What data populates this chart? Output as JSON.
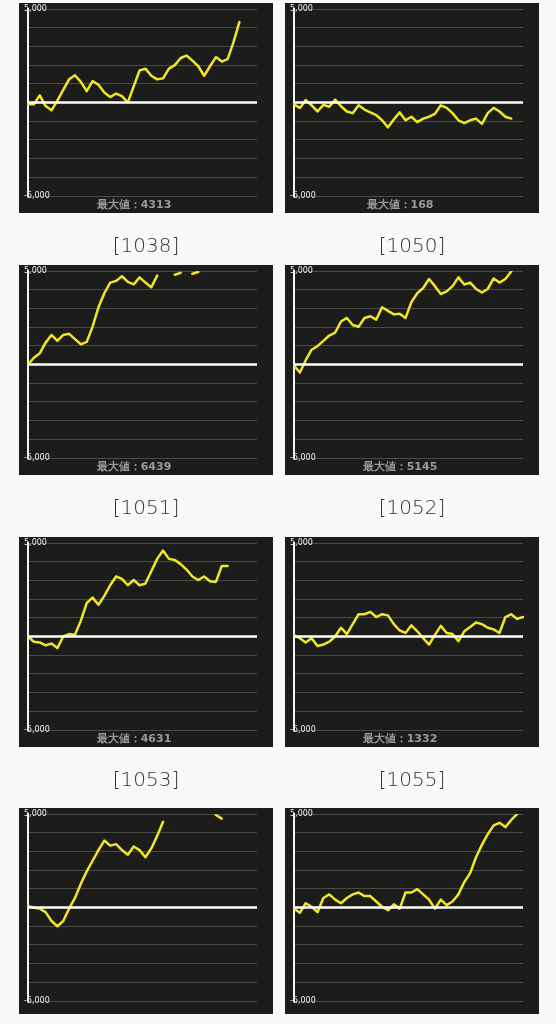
{
  "chart_data": [
    {
      "type": "line",
      "title": "[1038]",
      "annotations": [
        "最大値：4313"
      ],
      "categories": [
        null,
        null,
        null,
        null,
        null,
        null,
        null,
        null,
        null,
        null,
        null,
        null,
        null,
        null,
        null,
        null,
        null,
        null,
        null,
        null,
        null,
        null,
        null,
        null,
        null,
        null,
        null,
        null,
        null,
        null,
        null,
        null,
        null,
        null,
        null,
        null,
        null,
        null,
        null,
        null
      ],
      "series": [
        {
          "color": "#f0e629",
          "values": [
            -100,
            -100,
            380,
            -190,
            -420,
            100,
            670,
            1240,
            1460,
            1100,
            610,
            1140,
            950,
            530,
            290,
            480,
            340,
            0,
            860,
            1710,
            1810,
            1430,
            1240,
            1290,
            1810,
            2000,
            2380,
            2510,
            2240,
            1940,
            1430,
            1940,
            2430,
            2190,
            2320,
            3230,
            4300,
            null,
            null,
            null
          ]
        }
      ],
      "ylim": [
        -5000,
        5000
      ],
      "yticks": [
        {
          "value": -5000,
          "label": "-5,000"
        },
        {
          "value": -4000,
          "label": null
        },
        {
          "value": -3000,
          "label": null
        },
        {
          "value": -2000,
          "label": null
        },
        {
          "value": -1000,
          "label": null
        },
        {
          "value": 0,
          "label": null
        },
        {
          "value": 1000,
          "label": null
        },
        {
          "value": 2000,
          "label": null
        },
        {
          "value": 3000,
          "label": null
        },
        {
          "value": 4000,
          "label": null
        },
        {
          "value": 5000,
          "label": "5,000"
        }
      ],
      "grid": "y",
      "tick_labels": "y",
      "marker": "none",
      "ref_lines": [
        {
          "axis": "y",
          "value": 0,
          "color": "#ffffff"
        }
      ]
    },
    {
      "type": "line",
      "title": "[1050]",
      "annotations": [
        "最大値：168"
      ],
      "categories": [
        null,
        null,
        null,
        null,
        null,
        null,
        null,
        null,
        null,
        null,
        null,
        null,
        null,
        null,
        null,
        null,
        null,
        null,
        null,
        null,
        null,
        null,
        null,
        null,
        null,
        null,
        null,
        null,
        null,
        null,
        null,
        null,
        null,
        null,
        null,
        null,
        null,
        null,
        null,
        null
      ],
      "series": [
        {
          "color": "#f0e629",
          "values": [
            -100,
            -290,
            130,
            -150,
            -480,
            -130,
            -230,
            150,
            -190,
            -480,
            -570,
            -150,
            -380,
            -530,
            -670,
            -950,
            -1330,
            -910,
            -530,
            -950,
            -760,
            -1050,
            -860,
            -760,
            -610,
            -150,
            -290,
            -570,
            -950,
            -1100,
            -950,
            -860,
            -1140,
            -570,
            -290,
            -480,
            -760,
            -860,
            null,
            null
          ]
        }
      ],
      "ylim": [
        -5000,
        5000
      ],
      "yticks": [
        {
          "value": -5000,
          "label": "-5,000"
        },
        {
          "value": -4000,
          "label": null
        },
        {
          "value": -3000,
          "label": null
        },
        {
          "value": -2000,
          "label": null
        },
        {
          "value": -1000,
          "label": null
        },
        {
          "value": 0,
          "label": null
        },
        {
          "value": 1000,
          "label": null
        },
        {
          "value": 2000,
          "label": null
        },
        {
          "value": 3000,
          "label": null
        },
        {
          "value": 4000,
          "label": null
        },
        {
          "value": 5000,
          "label": "5,000"
        }
      ],
      "grid": "y",
      "tick_labels": "y",
      "marker": "none",
      "ref_lines": [
        {
          "axis": "y",
          "value": 0,
          "color": "#ffffff"
        }
      ]
    },
    {
      "type": "line",
      "title": "[1051]",
      "annotations": [
        "最大値：6439"
      ],
      "categories": [
        null,
        null,
        null,
        null,
        null,
        null,
        null,
        null,
        null,
        null,
        null,
        null,
        null,
        null,
        null,
        null,
        null,
        null,
        null,
        null,
        null,
        null,
        null,
        null,
        null,
        null,
        null,
        null,
        null,
        null,
        null,
        null,
        null,
        null,
        null,
        null,
        null,
        null,
        null,
        null
      ],
      "series": [
        {
          "color": "#f0e629",
          "values": [
            0,
            360,
            600,
            1170,
            1580,
            1260,
            1580,
            1640,
            1360,
            1080,
            1210,
            2020,
            3060,
            3810,
            4380,
            4470,
            4720,
            4420,
            4280,
            4660,
            4380,
            4130,
            4750,
            null,
            null,
            4800,
            4900,
            null,
            4850,
            4950,
            null,
            null,
            null,
            null,
            null,
            null,
            null,
            null,
            null,
            null
          ]
        }
      ],
      "ylim": [
        -5000,
        5000
      ],
      "yticks": [
        {
          "value": -5000,
          "label": "-5,000"
        },
        {
          "value": -4000,
          "label": null
        },
        {
          "value": -3000,
          "label": null
        },
        {
          "value": -2000,
          "label": null
        },
        {
          "value": -1000,
          "label": null
        },
        {
          "value": 0,
          "label": null
        },
        {
          "value": 1000,
          "label": null
        },
        {
          "value": 2000,
          "label": null
        },
        {
          "value": 3000,
          "label": null
        },
        {
          "value": 4000,
          "label": null
        },
        {
          "value": 5000,
          "label": "5,000"
        }
      ],
      "grid": "y",
      "tick_labels": "y",
      "marker": "none",
      "ref_lines": [
        {
          "axis": "y",
          "value": 0,
          "color": "#ffffff"
        }
      ]
    },
    {
      "type": "line",
      "title": "[1052]",
      "annotations": [
        "最大値：5145"
      ],
      "categories": [
        null,
        null,
        null,
        null,
        null,
        null,
        null,
        null,
        null,
        null,
        null,
        null,
        null,
        null,
        null,
        null,
        null,
        null,
        null,
        null,
        null,
        null,
        null,
        null,
        null,
        null,
        null,
        null,
        null,
        null,
        null,
        null,
        null,
        null,
        null,
        null,
        null,
        null,
        null,
        null
      ],
      "series": [
        {
          "color": "#f0e629",
          "values": [
            -60,
            -430,
            230,
            790,
            980,
            1260,
            1550,
            1700,
            2300,
            2490,
            2110,
            2020,
            2490,
            2580,
            2400,
            3060,
            2870,
            2680,
            2720,
            2490,
            3340,
            3810,
            4090,
            4570,
            4190,
            3770,
            3910,
            4190,
            4660,
            4280,
            4380,
            4040,
            3850,
            4040,
            4600,
            4380,
            4570,
            4980,
            null,
            null
          ]
        }
      ],
      "ylim": [
        -5000,
        5000
      ],
      "yticks": [
        {
          "value": -5000,
          "label": "-5,000"
        },
        {
          "value": -4000,
          "label": null
        },
        {
          "value": -3000,
          "label": null
        },
        {
          "value": -2000,
          "label": null
        },
        {
          "value": -1000,
          "label": null
        },
        {
          "value": 0,
          "label": null
        },
        {
          "value": 1000,
          "label": null
        },
        {
          "value": 2000,
          "label": null
        },
        {
          "value": 3000,
          "label": null
        },
        {
          "value": 4000,
          "label": null
        },
        {
          "value": 5000,
          "label": "5,000"
        }
      ],
      "grid": "y",
      "tick_labels": "y",
      "marker": "none",
      "ref_lines": [
        {
          "axis": "y",
          "value": 0,
          "color": "#ffffff"
        }
      ]
    },
    {
      "type": "line",
      "title": "[1053]",
      "annotations": [
        "最大値：4631"
      ],
      "categories": [
        null,
        null,
        null,
        null,
        null,
        null,
        null,
        null,
        null,
        null,
        null,
        null,
        null,
        null,
        null,
        null,
        null,
        null,
        null,
        null,
        null,
        null,
        null,
        null,
        null,
        null,
        null,
        null,
        null,
        null,
        null,
        null,
        null,
        null,
        null,
        null,
        null,
        null,
        null,
        null
      ],
      "series": [
        {
          "color": "#f0e629",
          "values": [
            0,
            -280,
            -320,
            -470,
            -380,
            -620,
            0,
            130,
            90,
            850,
            1790,
            2080,
            1700,
            2170,
            2740,
            3210,
            3080,
            2740,
            3020,
            2740,
            2830,
            3490,
            4150,
            4600,
            4150,
            4090,
            3870,
            3580,
            3210,
            3020,
            3210,
            2960,
            2920,
            3770,
            3770,
            null,
            null,
            null,
            null,
            null
          ]
        }
      ],
      "ylim": [
        -5000,
        5000
      ],
      "yticks": [
        {
          "value": -5000,
          "label": "-5,000"
        },
        {
          "value": -4000,
          "label": null
        },
        {
          "value": -3000,
          "label": null
        },
        {
          "value": -2000,
          "label": null
        },
        {
          "value": -1000,
          "label": null
        },
        {
          "value": 0,
          "label": null
        },
        {
          "value": 1000,
          "label": null
        },
        {
          "value": 2000,
          "label": null
        },
        {
          "value": 3000,
          "label": null
        },
        {
          "value": 4000,
          "label": null
        },
        {
          "value": 5000,
          "label": "5,000"
        }
      ],
      "grid": "y",
      "tick_labels": "y",
      "marker": "none",
      "ref_lines": [
        {
          "axis": "y",
          "value": 0,
          "color": "#ffffff"
        }
      ]
    },
    {
      "type": "line",
      "title": "[1055]",
      "annotations": [
        "最大値：1332"
      ],
      "categories": [
        null,
        null,
        null,
        null,
        null,
        null,
        null,
        null,
        null,
        null,
        null,
        null,
        null,
        null,
        null,
        null,
        null,
        null,
        null,
        null,
        null,
        null,
        null,
        null,
        null,
        null,
        null,
        null,
        null,
        null,
        null,
        null,
        null,
        null,
        null,
        null,
        null,
        null,
        null,
        null
      ],
      "series": [
        {
          "color": "#f0e629",
          "values": [
            60,
            -90,
            -320,
            -90,
            -510,
            -430,
            -280,
            0,
            470,
            130,
            660,
            1190,
            1190,
            1320,
            1040,
            1190,
            1130,
            660,
            320,
            190,
            600,
            280,
            -90,
            -430,
            90,
            570,
            190,
            130,
            -250,
            280,
            510,
            750,
            660,
            470,
            380,
            190,
            1040,
            1190,
            940,
            1040
          ]
        }
      ],
      "ylim": [
        -5000,
        5000
      ],
      "yticks": [
        {
          "value": -5000,
          "label": "-5,000"
        },
        {
          "value": -4000,
          "label": null
        },
        {
          "value": -3000,
          "label": null
        },
        {
          "value": -2000,
          "label": null
        },
        {
          "value": -1000,
          "label": null
        },
        {
          "value": 0,
          "label": null
        },
        {
          "value": 1000,
          "label": null
        },
        {
          "value": 2000,
          "label": null
        },
        {
          "value": 3000,
          "label": null
        },
        {
          "value": 4000,
          "label": null
        },
        {
          "value": 5000,
          "label": "5,000"
        }
      ],
      "grid": "y",
      "tick_labels": "y",
      "marker": "none",
      "ref_lines": [
        {
          "axis": "y",
          "value": 0,
          "color": "#ffffff"
        }
      ]
    },
    {
      "type": "line",
      "categories": [
        null,
        null,
        null,
        null,
        null,
        null,
        null,
        null,
        null,
        null,
        null,
        null,
        null,
        null,
        null,
        null,
        null,
        null,
        null,
        null,
        null,
        null,
        null,
        null,
        null,
        null,
        null,
        null,
        null,
        null,
        null,
        null,
        null,
        null,
        null,
        null,
        null,
        null,
        null,
        null
      ],
      "series": [
        {
          "color": "#f0e629",
          "values": [
            90,
            -20,
            -60,
            -250,
            -720,
            -1000,
            -720,
            -60,
            510,
            1270,
            1930,
            2500,
            3070,
            3580,
            3310,
            3390,
            3070,
            2820,
            3260,
            3070,
            2690,
            3160,
            3830,
            4580,
            null,
            null,
            null,
            null,
            null,
            null,
            null,
            null,
            4950,
            4750,
            null,
            null,
            null,
            null,
            null,
            null
          ]
        }
      ],
      "ylim": [
        -5000,
        5000
      ],
      "yticks": [
        {
          "value": -5000,
          "label": "-5,000"
        },
        {
          "value": -4000,
          "label": null
        },
        {
          "value": -3000,
          "label": null
        },
        {
          "value": -2000,
          "label": null
        },
        {
          "value": -1000,
          "label": null
        },
        {
          "value": 0,
          "label": null
        },
        {
          "value": 1000,
          "label": null
        },
        {
          "value": 2000,
          "label": null
        },
        {
          "value": 3000,
          "label": null
        },
        {
          "value": 4000,
          "label": null
        },
        {
          "value": 5000,
          "label": "5,000"
        }
      ],
      "grid": "y",
      "tick_labels": "y",
      "marker": "none",
      "ref_lines": [
        {
          "axis": "y",
          "value": 0,
          "color": "#ffffff"
        }
      ]
    },
    {
      "type": "line",
      "categories": [
        null,
        null,
        null,
        null,
        null,
        null,
        null,
        null,
        null,
        null,
        null,
        null,
        null,
        null,
        null,
        null,
        null,
        null,
        null,
        null,
        null,
        null,
        null,
        null,
        null,
        null,
        null,
        null,
        null,
        null,
        null,
        null,
        null,
        null,
        null,
        null,
        null,
        null,
        null,
        null
      ],
      "series": [
        {
          "color": "#f0e629",
          "values": [
            -60,
            -280,
            230,
            40,
            -250,
            510,
            700,
            420,
            230,
            510,
            700,
            800,
            610,
            610,
            320,
            40,
            -150,
            170,
            -60,
            800,
            800,
            980,
            700,
            420,
            -60,
            420,
            130,
            320,
            700,
            1360,
            1840,
            2690,
            3350,
            3920,
            4390,
            4530,
            4300,
            4680,
            5000,
            null
          ]
        }
      ],
      "ylim": [
        -5000,
        5000
      ],
      "yticks": [
        {
          "value": -5000,
          "label": "-5,000"
        },
        {
          "value": -4000,
          "label": null
        },
        {
          "value": -3000,
          "label": null
        },
        {
          "value": -2000,
          "label": null
        },
        {
          "value": -1000,
          "label": null
        },
        {
          "value": 0,
          "label": null
        },
        {
          "value": 1000,
          "label": null
        },
        {
          "value": 2000,
          "label": null
        },
        {
          "value": 3000,
          "label": null
        },
        {
          "value": 4000,
          "label": null
        },
        {
          "value": 5000,
          "label": "5,000"
        }
      ],
      "grid": "y",
      "tick_labels": "y",
      "marker": "none",
      "ref_lines": [
        {
          "axis": "y",
          "value": 0,
          "color": "#ffffff"
        }
      ]
    }
  ]
}
